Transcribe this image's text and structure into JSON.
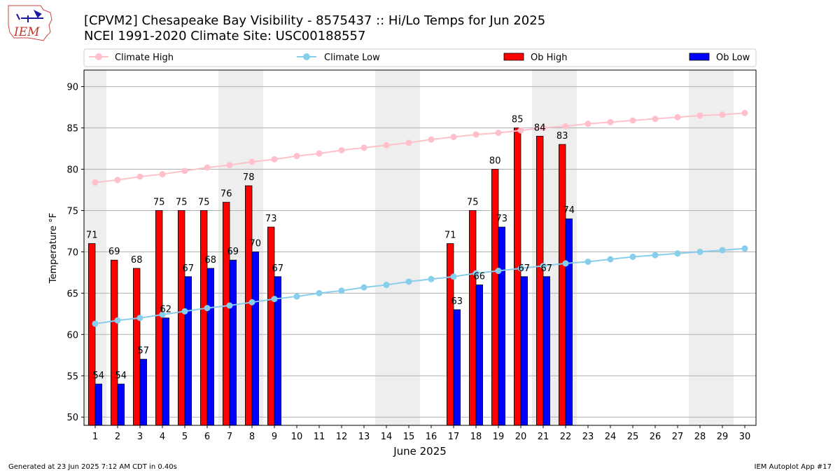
{
  "header": {
    "logo_text": "IEM",
    "title_line1": "[CPVM2] Chesapeake Bay Visibility - 8575437 :: Hi/Lo Temps for Jun 2025",
    "title_line2": "NCEI 1991-2020 Climate Site: USC00188557"
  },
  "footer": {
    "generated": "Generated at 23 Jun 2025 7:12 AM CDT in 0.40s",
    "app": "IEM Autoplot App #17"
  },
  "colors": {
    "climate_high": "#FFC0CB",
    "climate_low": "#87CEEB",
    "ob_high": "#FF0000",
    "ob_low": "#0000FF",
    "weekend_band": "#EEEEEE",
    "grid": "#B0B0B0"
  },
  "chart_data": {
    "type": "bar",
    "xlabel": "June 2025",
    "ylabel": "Temperature °F",
    "ylim": [
      49,
      92
    ],
    "xlim": [
      0.5,
      30.5
    ],
    "yticks": [
      50,
      55,
      60,
      65,
      70,
      75,
      80,
      85,
      90
    ],
    "xticks": [
      1,
      2,
      3,
      4,
      5,
      6,
      7,
      8,
      9,
      10,
      11,
      12,
      13,
      14,
      15,
      16,
      17,
      18,
      19,
      20,
      21,
      22,
      23,
      24,
      25,
      26,
      27,
      28,
      29,
      30
    ],
    "grid": "horizontal",
    "legend_position": "top",
    "weekend_days": [
      1,
      7,
      8,
      14,
      15,
      21,
      22,
      28,
      29
    ],
    "series": [
      {
        "name": "Climate High",
        "kind": "line",
        "x": [
          1,
          2,
          3,
          4,
          5,
          6,
          7,
          8,
          9,
          10,
          11,
          12,
          13,
          14,
          15,
          16,
          17,
          18,
          19,
          20,
          21,
          22,
          23,
          24,
          25,
          26,
          27,
          28,
          29,
          30
        ],
        "values": [
          78.4,
          78.7,
          79.1,
          79.4,
          79.8,
          80.2,
          80.5,
          80.9,
          81.2,
          81.6,
          81.9,
          82.3,
          82.6,
          82.9,
          83.2,
          83.6,
          83.9,
          84.2,
          84.4,
          84.7,
          85.0,
          85.2,
          85.5,
          85.7,
          85.9,
          86.1,
          86.3,
          86.5,
          86.6,
          86.8
        ]
      },
      {
        "name": "Climate Low",
        "kind": "line",
        "x": [
          1,
          2,
          3,
          4,
          5,
          6,
          7,
          8,
          9,
          10,
          11,
          12,
          13,
          14,
          15,
          16,
          17,
          18,
          19,
          20,
          21,
          22,
          23,
          24,
          25,
          26,
          27,
          28,
          29,
          30
        ],
        "values": [
          61.3,
          61.7,
          62.0,
          62.4,
          62.8,
          63.2,
          63.5,
          63.9,
          64.3,
          64.6,
          65.0,
          65.3,
          65.7,
          66.0,
          66.4,
          66.7,
          67.0,
          67.4,
          67.7,
          68.0,
          68.3,
          68.6,
          68.8,
          69.1,
          69.4,
          69.6,
          69.8,
          70.0,
          70.2,
          70.4
        ]
      },
      {
        "name": "Ob High",
        "kind": "bar",
        "x": [
          1,
          2,
          3,
          4,
          5,
          6,
          7,
          8,
          9,
          17,
          18,
          19,
          20,
          21,
          22
        ],
        "values": [
          71,
          69,
          68,
          75,
          75,
          75,
          76,
          78,
          73,
          71,
          75,
          80,
          85,
          84,
          83
        ]
      },
      {
        "name": "Ob Low",
        "kind": "bar",
        "x": [
          1,
          2,
          3,
          4,
          5,
          6,
          7,
          8,
          9,
          17,
          18,
          19,
          20,
          21,
          22
        ],
        "values": [
          54,
          54,
          57,
          62,
          67,
          68,
          69,
          70,
          67,
          63,
          66,
          73,
          67,
          67,
          74
        ]
      }
    ]
  }
}
